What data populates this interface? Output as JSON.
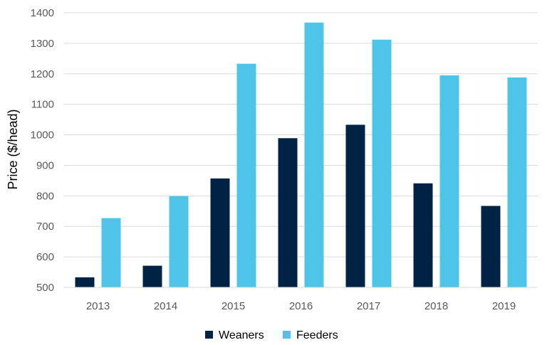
{
  "chart_data": {
    "type": "bar",
    "title": "",
    "xlabel": "",
    "ylabel": "Price ($/head)",
    "categories": [
      "2013",
      "2014",
      "2015",
      "2016",
      "2017",
      "2018",
      "2019"
    ],
    "series": [
      {
        "name": "Weaners",
        "color": "#002345",
        "values": [
          533,
          571,
          857,
          989,
          1033,
          841,
          767
        ]
      },
      {
        "name": "Feeders",
        "color": "#4dc4e8",
        "values": [
          727,
          799,
          1233,
          1368,
          1312,
          1195,
          1188
        ]
      }
    ],
    "ylim": [
      500,
      1400
    ],
    "yticks": [
      "500",
      "600",
      "700",
      "800",
      "900",
      "1000",
      "1100",
      "1200",
      "1300",
      "1400"
    ],
    "grid": true,
    "legend_position": "bottom"
  }
}
